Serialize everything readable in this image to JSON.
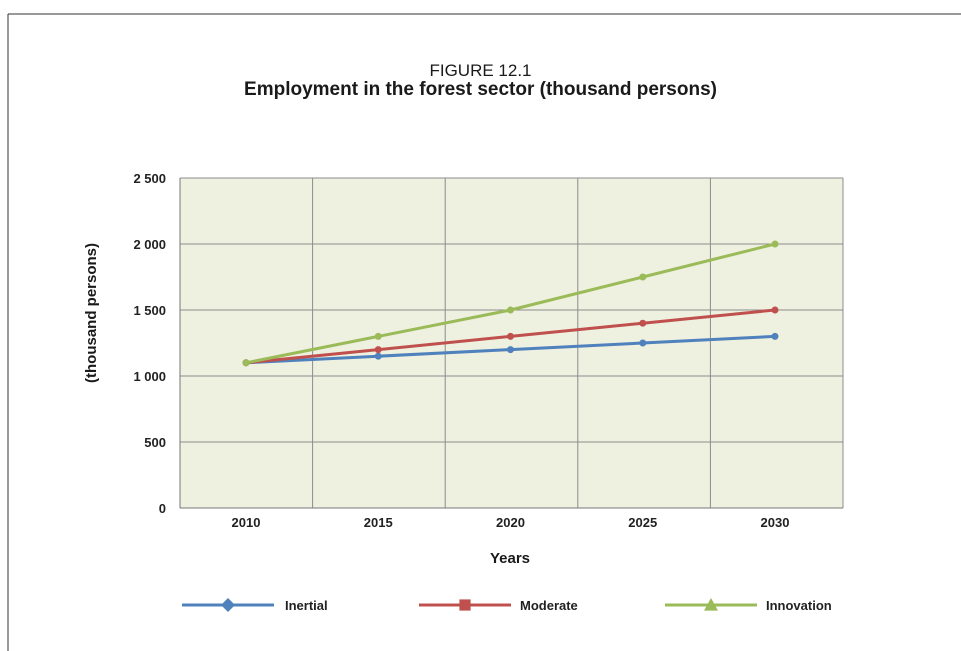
{
  "figure": {
    "label": "FIGURE 12.1",
    "title": "Employment in the forest sector (thousand persons)"
  },
  "chart_data": {
    "type": "line",
    "x": [
      2010,
      2015,
      2020,
      2025,
      2030
    ],
    "x_tick_labels": [
      "2010",
      "2015",
      "2020",
      "2025",
      "2030"
    ],
    "xlabel": "Years",
    "ylabel": "(thousand persons)",
    "ylim": [
      0,
      2500
    ],
    "y_ticks": [
      0,
      500,
      1000,
      1500,
      2000,
      2500
    ],
    "y_tick_labels": [
      "0",
      "500",
      "1 000",
      "1 500",
      "2 000",
      "2 500"
    ],
    "grid": true,
    "legend_position": "bottom",
    "series": [
      {
        "name": "Inertial",
        "values": [
          1100,
          1150,
          1200,
          1250,
          1300
        ],
        "color": "#4f81bd",
        "marker": "diamond"
      },
      {
        "name": "Moderate",
        "values": [
          1100,
          1200,
          1300,
          1400,
          1500
        ],
        "color": "#c0504d",
        "marker": "square"
      },
      {
        "name": "Innovation",
        "values": [
          1100,
          1300,
          1500,
          1750,
          2000
        ],
        "color": "#9bbb59",
        "marker": "triangle"
      }
    ],
    "plot_background": "#eef0e0",
    "grid_color": "#8c8c8c"
  }
}
